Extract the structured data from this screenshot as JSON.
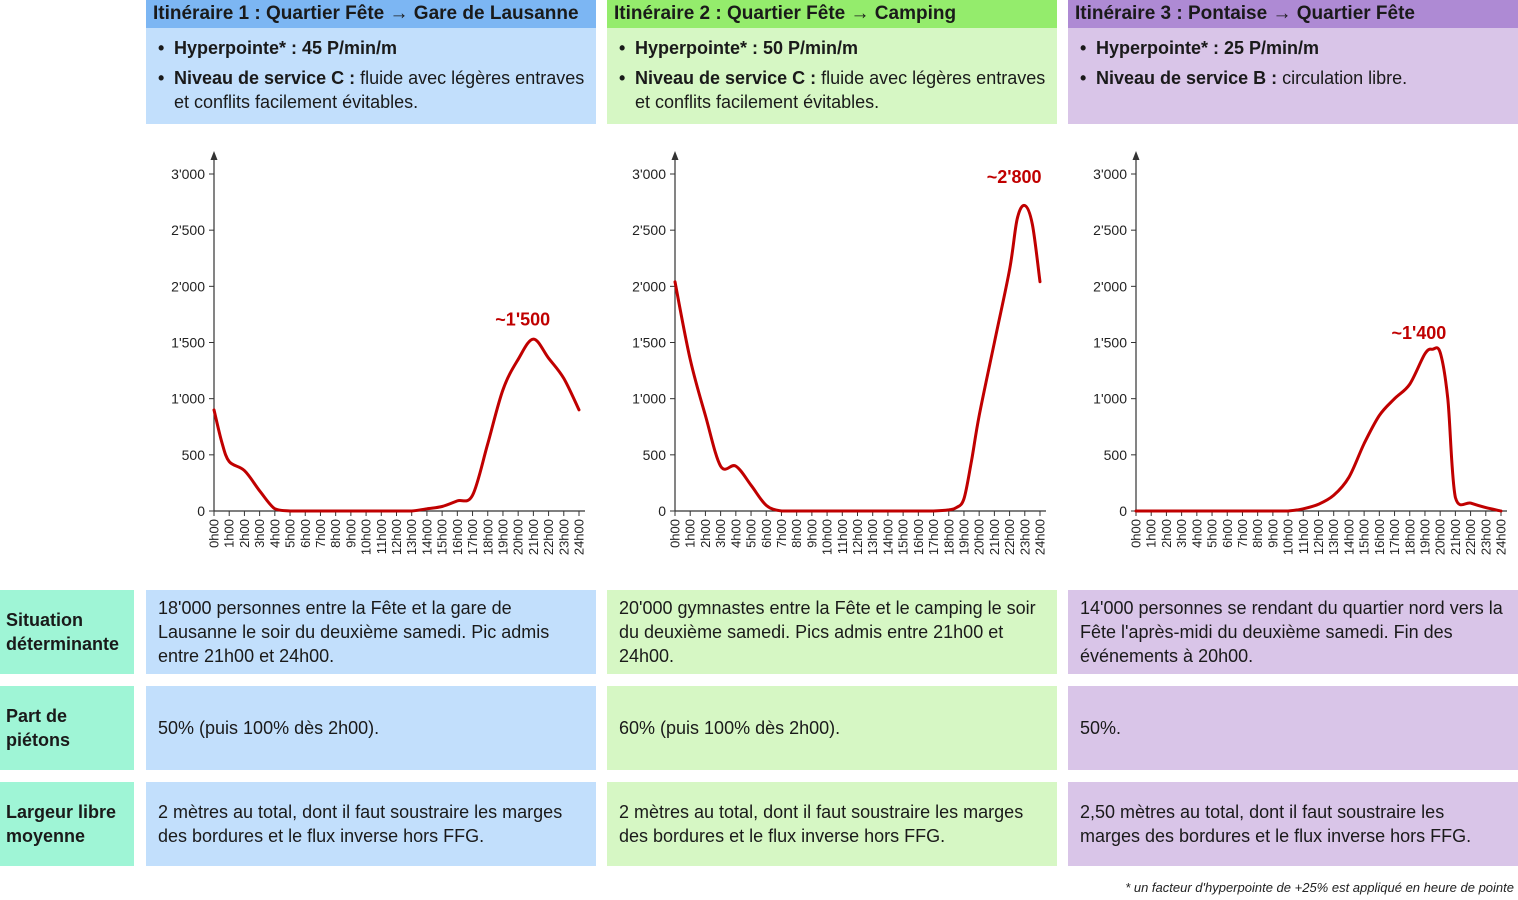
{
  "footnote": "* un facteur d'hyperpointe de +25% est appliqué en heure de pointe",
  "row_labels": {
    "situation": "Situation déterminante",
    "part": "Part de piétons",
    "largeur": "Largeur libre moyenne"
  },
  "colors": {
    "blue": "#c2dffc",
    "blue_header": "#7cb6f3",
    "green": "#d6f7c4",
    "green_header": "#94ec6c",
    "purple": "#d9c5e8",
    "purple_header": "#ae8ad4",
    "label": "#9ff5d6",
    "curve": "#c00000"
  },
  "itineraries": [
    {
      "title": "Itinéraire 1 : Quartier Fête → Gare de Lausanne",
      "hyper_label": "Hyperpointe* : 45 P/min/m",
      "service_label": "Niveau de service C :",
      "service_text": " fluide avec légères entraves et conflits facilement évitables.",
      "situation": "18'000 personnes entre la Fête et la gare de Lausanne le soir du deuxième samedi. Pic admis entre 21h00 et 24h00.",
      "part": "50% (puis 100% dès 2h00).",
      "largeur": "2 mètres au total, dont il faut soustraire les marges des bordures et le flux inverse hors FFG."
    },
    {
      "title": "Itinéraire 2 : Quartier Fête → Camping",
      "hyper_label": "Hyperpointe* : 50 P/min/m",
      "service_label": "Niveau de service C :",
      "service_text": " fluide avec légères entraves et conflits facilement évitables.",
      "situation": "20'000 gymnastes entre la Fête et le camping le soir du deuxième samedi. Pics admis entre 21h00 et 24h00.",
      "part": "60% (puis 100% dès 2h00).",
      "largeur": "2 mètres au total, dont il faut soustraire les marges des bordures et le flux inverse hors FFG."
    },
    {
      "title": "Itinéraire 3 : Pontaise → Quartier Fête",
      "hyper_label": "Hyperpointe* : 25 P/min/m",
      "service_label": "Niveau de service B :",
      "service_text": " circulation libre.",
      "situation": "14'000 personnes se rendant du quartier nord vers la Fête l'après-midi du deuxième samedi. Fin des événements à 20h00.",
      "part": "50%.",
      "largeur": "2,50 mètres au total, dont il faut soustraire les marges des bordures et le flux inverse hors FFG."
    }
  ],
  "chart_data": [
    {
      "type": "line",
      "categories": [
        "0h00",
        "1h00",
        "2h00",
        "3h00",
        "4h00",
        "5h00",
        "6h00",
        "7h00",
        "8h00",
        "9h00",
        "10h00",
        "11h00",
        "12h00",
        "13h00",
        "14h00",
        "15h00",
        "16h00",
        "17h00",
        "18h00",
        "19h00",
        "20h00",
        "21h00",
        "22h00",
        "23h00",
        "24h00"
      ],
      "y_ticks": [
        "0",
        "500",
        "1'000",
        "1'500",
        "2'000",
        "2'500",
        "3'000"
      ],
      "ylim": [
        0,
        3000
      ],
      "x": [
        0,
        0.5,
        1,
        2,
        3,
        4,
        5,
        6,
        7,
        8,
        9,
        10,
        11,
        12,
        13,
        14,
        15,
        16,
        17,
        18,
        19,
        20,
        21,
        22,
        23,
        24
      ],
      "values": [
        900,
        620,
        440,
        360,
        180,
        20,
        0,
        0,
        0,
        0,
        0,
        0,
        0,
        0,
        0,
        20,
        40,
        90,
        140,
        600,
        1080,
        1350,
        1530,
        1360,
        1180,
        900
      ],
      "annotation": "~1'500",
      "annotation_x": 20.3,
      "annotation_y": 1650
    },
    {
      "type": "line",
      "categories": [
        "0h00",
        "1h00",
        "2h00",
        "3h00",
        "4h00",
        "5h00",
        "6h00",
        "7h00",
        "8h00",
        "9h00",
        "10h00",
        "11h00",
        "12h00",
        "13h00",
        "14h00",
        "15h00",
        "16h00",
        "17h00",
        "18h00",
        "19h00",
        "20h00",
        "21h00",
        "22h00",
        "23h00",
        "24h00"
      ],
      "y_ticks": [
        "0",
        "500",
        "1'000",
        "1'500",
        "2'000",
        "2'500",
        "3'000"
      ],
      "ylim": [
        0,
        3000
      ],
      "x": [
        0,
        1,
        2,
        3,
        4,
        5,
        6,
        7,
        8,
        9,
        10,
        11,
        12,
        13,
        14,
        15,
        16,
        17,
        18,
        18.5,
        19,
        19.5,
        20,
        21,
        22,
        22.5,
        23,
        23.5,
        24
      ],
      "values": [
        2040,
        1350,
        850,
        400,
        400,
        230,
        50,
        0,
        0,
        0,
        0,
        0,
        0,
        0,
        0,
        0,
        0,
        0,
        10,
        30,
        110,
        450,
        850,
        1500,
        2150,
        2600,
        2720,
        2550,
        2040
      ],
      "annotation": "~2'800",
      "annotation_x": 22.3,
      "annotation_y": 2920
    },
    {
      "type": "line",
      "categories": [
        "0h00",
        "1h00",
        "2h00",
        "3h00",
        "4h00",
        "5h00",
        "6h00",
        "7h00",
        "8h00",
        "9h00",
        "10h00",
        "11h00",
        "12h00",
        "13h00",
        "14h00",
        "15h00",
        "16h00",
        "17h00",
        "18h00",
        "19h00",
        "20h00",
        "21h00",
        "22h00",
        "23h00",
        "24h00"
      ],
      "y_ticks": [
        "0",
        "500",
        "1'000",
        "1'500",
        "2'000",
        "2'500",
        "3'000"
      ],
      "ylim": [
        0,
        3000
      ],
      "x": [
        0,
        1,
        2,
        3,
        4,
        5,
        6,
        7,
        8,
        9,
        10,
        11,
        12,
        13,
        14,
        15,
        16,
        17,
        18,
        19,
        19.5,
        20,
        20.5,
        21,
        22,
        23,
        24
      ],
      "values": [
        0,
        0,
        0,
        0,
        0,
        0,
        0,
        0,
        0,
        0,
        0,
        20,
        60,
        140,
        300,
        600,
        850,
        1000,
        1130,
        1400,
        1440,
        1410,
        1000,
        120,
        70,
        30,
        0
      ],
      "annotation": "~1'400",
      "annotation_x": 18.6,
      "annotation_y": 1530
    }
  ]
}
